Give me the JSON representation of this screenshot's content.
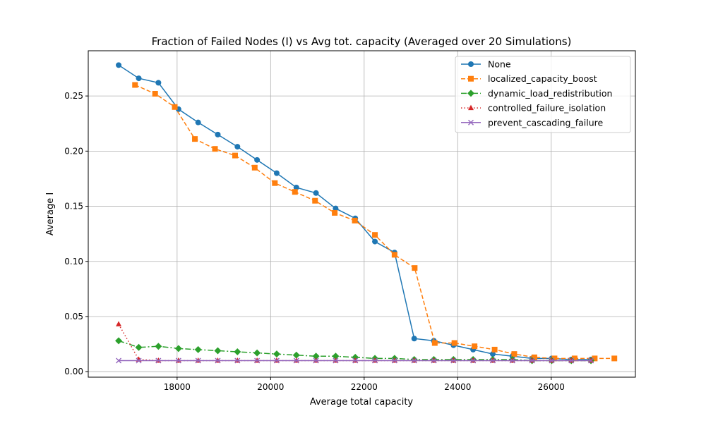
{
  "chart_data": {
    "type": "line",
    "title": "Fraction of Failed Nodes (I) vs Avg tot. capacity (Averaged over 20 Simulations)",
    "xlabel": "Average total capacity",
    "ylabel": "Average I",
    "xlim": [
      16100,
      27800
    ],
    "ylim": [
      -0.005,
      0.291
    ],
    "xticks": [
      18000,
      20000,
      22000,
      24000,
      26000
    ],
    "xtick_labels": [
      "18000",
      "20000",
      "22000",
      "24000",
      "26000"
    ],
    "yticks": [
      0.0,
      0.05,
      0.1,
      0.15,
      0.2,
      0.25
    ],
    "ytick_labels": [
      "0.00",
      "0.05",
      "0.10",
      "0.15",
      "0.20",
      "0.25"
    ],
    "grid": true,
    "legend_position": "top-right",
    "series": [
      {
        "name": "None",
        "color": "#1f77b4",
        "linestyle": "solid",
        "marker": "circle",
        "x": [
          16750,
          17180,
          17600,
          18030,
          18450,
          18870,
          19290,
          19710,
          20130,
          20550,
          20970,
          21390,
          21810,
          22230,
          22650,
          23070,
          23490,
          23910,
          24330,
          24750,
          25170,
          25590,
          26010,
          26430,
          26850
        ],
        "y": [
          0.278,
          0.266,
          0.262,
          0.238,
          0.226,
          0.215,
          0.204,
          0.192,
          0.18,
          0.167,
          0.162,
          0.148,
          0.139,
          0.118,
          0.108,
          0.03,
          0.028,
          0.024,
          0.02,
          0.016,
          0.014,
          0.012,
          0.012,
          0.011,
          0.011
        ]
      },
      {
        "name": "localized_capacity_boost",
        "color": "#ff7f0e",
        "linestyle": "dashed",
        "marker": "square",
        "x": [
          17100,
          17530,
          17950,
          18380,
          18810,
          19240,
          19660,
          20090,
          20520,
          20950,
          21370,
          21800,
          22230,
          22650,
          23080,
          23510,
          23930,
          24360,
          24790,
          25210,
          25640,
          26070,
          26500,
          26930,
          27350
        ],
        "y": [
          0.26,
          0.252,
          0.24,
          0.211,
          0.202,
          0.196,
          0.185,
          0.171,
          0.163,
          0.155,
          0.144,
          0.137,
          0.124,
          0.106,
          0.094,
          0.026,
          0.026,
          0.023,
          0.02,
          0.016,
          0.013,
          0.012,
          0.012,
          0.012,
          0.012
        ]
      },
      {
        "name": "dynamic_load_redistribution",
        "color": "#2ca02c",
        "linestyle": "dashdot",
        "marker": "diamond",
        "x": [
          16750,
          17180,
          17600,
          18030,
          18450,
          18870,
          19290,
          19710,
          20130,
          20550,
          20970,
          21390,
          21810,
          22230,
          22650,
          23070,
          23490,
          23910,
          24330,
          24750,
          25170,
          25590,
          26010,
          26430,
          26850
        ],
        "y": [
          0.028,
          0.022,
          0.023,
          0.021,
          0.02,
          0.019,
          0.018,
          0.017,
          0.016,
          0.015,
          0.014,
          0.014,
          0.013,
          0.012,
          0.012,
          0.011,
          0.011,
          0.011,
          0.011,
          0.011,
          0.011,
          0.01,
          0.01,
          0.01,
          0.01
        ]
      },
      {
        "name": "controlled_failure_isolation",
        "color": "#d62728",
        "linestyle": "dotted",
        "marker": "triangle",
        "x": [
          16750,
          17180,
          17600,
          18030,
          18450,
          18870,
          19290,
          19710,
          20130,
          20550,
          20970,
          21390,
          21810,
          22230,
          22650,
          23070,
          23490,
          23910,
          24330,
          24750,
          25170,
          25590,
          26010,
          26430,
          26850
        ],
        "y": [
          0.043,
          0.011,
          0.01,
          0.01,
          0.01,
          0.01,
          0.01,
          0.01,
          0.01,
          0.01,
          0.01,
          0.01,
          0.01,
          0.01,
          0.01,
          0.01,
          0.01,
          0.01,
          0.01,
          0.01,
          0.01,
          0.01,
          0.01,
          0.01,
          0.01
        ]
      },
      {
        "name": "prevent_cascading_failure",
        "color": "#9467bd",
        "linestyle": "solid",
        "marker": "x",
        "x": [
          16750,
          17180,
          17600,
          18030,
          18450,
          18870,
          19290,
          19710,
          20130,
          20550,
          20970,
          21390,
          21810,
          22230,
          22650,
          23070,
          23490,
          23910,
          24330,
          24750,
          25170,
          25590,
          26010,
          26430,
          26850
        ],
        "y": [
          0.01,
          0.01,
          0.01,
          0.01,
          0.01,
          0.01,
          0.01,
          0.01,
          0.01,
          0.01,
          0.01,
          0.01,
          0.01,
          0.01,
          0.01,
          0.01,
          0.01,
          0.01,
          0.01,
          0.01,
          0.01,
          0.01,
          0.01,
          0.01,
          0.01
        ]
      }
    ]
  }
}
